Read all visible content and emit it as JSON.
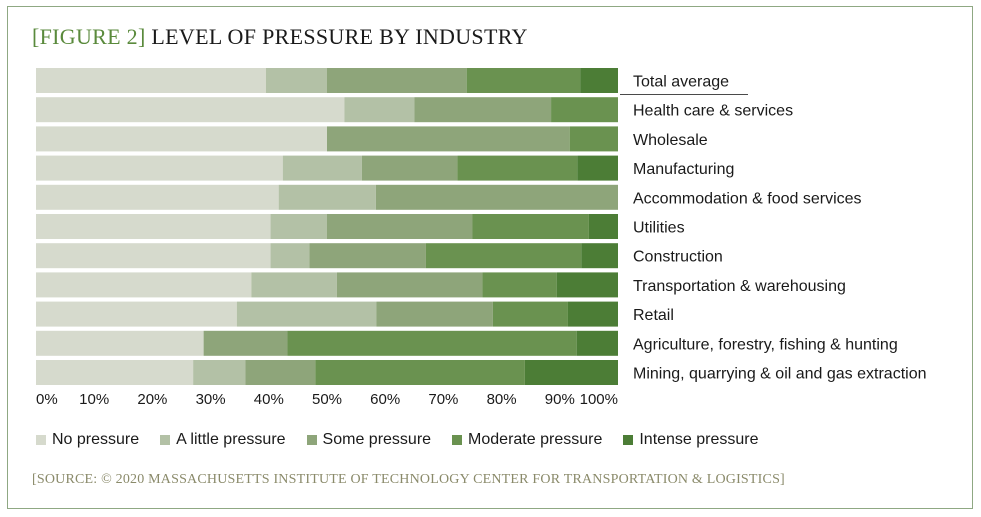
{
  "figure": {
    "tag": "[FIGURE 2]",
    "title": "LEVEL OF PRESSURE BY INDUSTRY",
    "source": "[SOURCE: © 2020 MASSACHUSETTS INSTITUTE OF TECHNOLOGY CENTER FOR TRANSPORTATION & LOGISTICS]"
  },
  "colors": {
    "frame": "#8fa883",
    "tag": "#5a8a3c",
    "series": [
      "#d6dacd",
      "#b3c1a6",
      "#8ea57a",
      "#6a9250",
      "#4c7d36"
    ],
    "highlight_line": "#4a4a4a"
  },
  "chart_data": {
    "type": "bar",
    "orientation": "horizontal",
    "stacked": true,
    "title": "LEVEL OF PRESSURE BY INDUSTRY",
    "xlim": [
      0,
      100
    ],
    "x_ticks": [
      "0%",
      "10%",
      "20%",
      "30%",
      "40%",
      "50%",
      "60%",
      "70%",
      "80%",
      "90%",
      "100%"
    ],
    "legend_position": "bottom",
    "highlighted_category": "Total average",
    "categories": [
      "Total average",
      "Health care & services",
      "Wholesale",
      "Manufacturing",
      "Accommodation & food services",
      "Utilities",
      "Construction",
      "Transportation & warehousing",
      "Retail",
      "Agriculture, forestry, fishing & hunting",
      "Mining, quarrying & oil and gas extraction"
    ],
    "series": [
      {
        "name": "No pressure",
        "values": [
          39.5,
          53,
          50,
          42.4,
          41.7,
          40.3,
          40.3,
          37,
          34.5,
          28.8,
          27
        ]
      },
      {
        "name": "A little pressure",
        "values": [
          10.5,
          12,
          0,
          13.6,
          16.7,
          9.7,
          6.7,
          14.7,
          24,
          0,
          9
        ]
      },
      {
        "name": "Some pressure",
        "values": [
          24,
          23.5,
          41.7,
          16.4,
          41.6,
          25,
          20,
          25,
          20,
          14.4,
          12
        ]
      },
      {
        "name": "Moderate pressure",
        "values": [
          19.5,
          11.5,
          8.3,
          20.6,
          0,
          20,
          26.7,
          12.8,
          12.9,
          49.7,
          36
        ]
      },
      {
        "name": "Intense pressure",
        "values": [
          6.5,
          0,
          0,
          7,
          0,
          5,
          6.3,
          10.5,
          8.6,
          7.1,
          16
        ]
      }
    ]
  }
}
